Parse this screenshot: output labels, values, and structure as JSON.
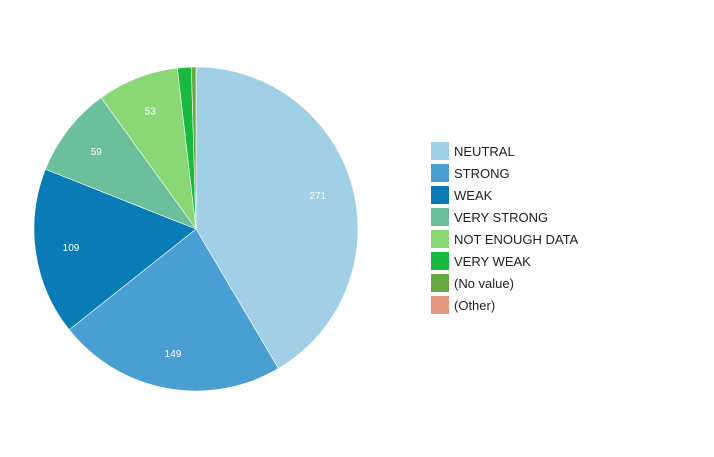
{
  "chart_data": {
    "type": "pie",
    "title": "",
    "categories": [
      "NEUTRAL",
      "STRONG",
      "WEAK",
      "VERY STRONG",
      "NOT ENOUGH DATA",
      "VERY WEAK",
      "(No value)",
      "(Other)"
    ],
    "values": [
      271,
      149,
      109,
      59,
      53,
      9,
      3,
      0
    ],
    "data_labels": [
      "271",
      "149",
      "109",
      "59",
      "53",
      "",
      "",
      ""
    ],
    "colors": [
      "#a1cfe6",
      "#4a9fd2",
      "#0a7cb5",
      "#6bbf9a",
      "#8ad875",
      "#17b93f",
      "#66aa44",
      "#e59880"
    ],
    "legend_position": "right",
    "start_angle": "top, clockwise"
  }
}
